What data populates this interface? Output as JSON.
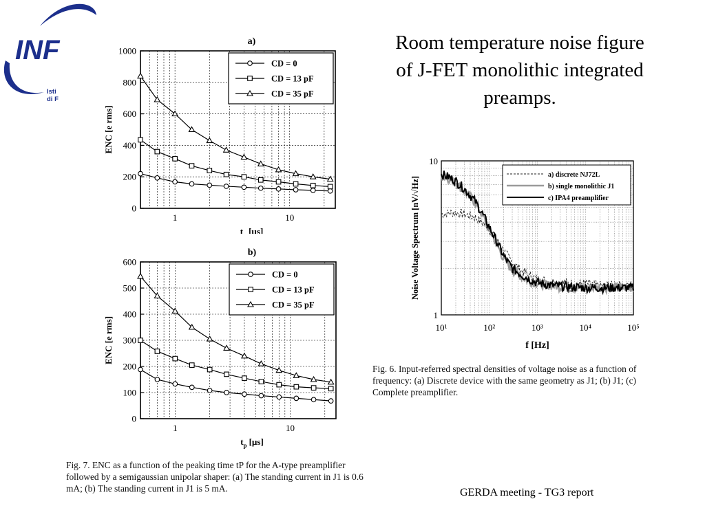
{
  "slide": {
    "title": "Room temperature noise figure of J-FET monolithic integrated preamps.",
    "footer": "GERDA meeting - TG3 report",
    "logo": {
      "text": "INF",
      "line1": "Isti",
      "line2": "di F",
      "color": "#1c2f8c"
    }
  },
  "captions": {
    "fig7": "Fig. 7. ENC as a function of the peaking time tP for the A-type preamplifier followed by a semigaussian unipolar shaper: (a) The standing current in J1 is 0.6 mA; (b) The standing current in J1 is 5 mA.",
    "fig6": "Fig. 6. Input-referred spectral densities of voltage noise as a function of frequency: (a) Discrete device with the same geometry as J1; (b) J1; (c) Complete preamplifier."
  },
  "chart_data": [
    {
      "panel": "a)",
      "type": "line",
      "xscale": "log",
      "xlim": [
        0.5,
        25
      ],
      "ylim": [
        0,
        1000
      ],
      "xticks": [
        1,
        10
      ],
      "yticks": [
        0,
        200,
        400,
        600,
        800,
        1000
      ],
      "xlabel": "tp [µs]",
      "ylabel": "ENC [e rms]",
      "legend_position": "top-right",
      "x": [
        0.5,
        0.7,
        1.0,
        1.4,
        2.0,
        2.8,
        4.0,
        5.6,
        8.0,
        11.3,
        16.0,
        22.6
      ],
      "series": [
        {
          "name": "CD = 0",
          "marker": "circle",
          "values": [
            220,
            193,
            168,
            155,
            147,
            140,
            134,
            128,
            123,
            118,
            114,
            110
          ]
        },
        {
          "name": "CD = 13 pF",
          "marker": "square",
          "values": [
            435,
            360,
            315,
            270,
            240,
            215,
            200,
            180,
            168,
            155,
            145,
            138
          ]
        },
        {
          "name": "CD = 35 pF",
          "marker": "triangle",
          "values": [
            840,
            690,
            600,
            500,
            430,
            370,
            325,
            282,
            245,
            220,
            200,
            185
          ]
        }
      ]
    },
    {
      "panel": "b)",
      "type": "line",
      "xscale": "log",
      "xlim": [
        0.5,
        25
      ],
      "ylim": [
        0,
        600
      ],
      "xticks": [
        1,
        10
      ],
      "yticks": [
        0,
        100,
        200,
        300,
        400,
        500,
        600
      ],
      "xlabel": "tp [µs]",
      "ylabel": "ENC [e rms]",
      "legend_position": "top-right",
      "x": [
        0.5,
        0.7,
        1.0,
        1.4,
        2.0,
        2.8,
        4.0,
        5.6,
        8.0,
        11.3,
        16.0,
        22.6
      ],
      "series": [
        {
          "name": "CD = 0",
          "marker": "circle",
          "values": [
            188,
            150,
            133,
            120,
            108,
            100,
            94,
            88,
            83,
            78,
            73,
            68
          ]
        },
        {
          "name": "CD = 13 pF",
          "marker": "square",
          "values": [
            300,
            258,
            230,
            205,
            188,
            170,
            155,
            142,
            130,
            122,
            118,
            115
          ]
        },
        {
          "name": "CD = 35 pF",
          "marker": "triangle",
          "values": [
            545,
            470,
            412,
            350,
            305,
            270,
            240,
            210,
            185,
            165,
            150,
            140
          ]
        }
      ]
    },
    {
      "panel": "fig6",
      "type": "line",
      "xscale": "log",
      "yscale": "log",
      "xlim": [
        10,
        100000
      ],
      "ylim": [
        1,
        10
      ],
      "xticks": [
        "10¹",
        "10²",
        "10³",
        "10⁴",
        "10⁵"
      ],
      "yticks": [
        "1",
        "10"
      ],
      "xlabel": "f [Hz]",
      "ylabel": "Noise Voltage Spectrum [nV/√Hz]",
      "legend_position": "top-right",
      "x": [
        10,
        15,
        20,
        30,
        50,
        70,
        100,
        150,
        200,
        300,
        500,
        700,
        1000,
        2000,
        5000,
        10000,
        20000,
        50000,
        100000
      ],
      "series": [
        {
          "name": "a) discrete NJ72L",
          "style": "dashed",
          "values": [
            4.5,
            4.6,
            4.6,
            4.5,
            4.3,
            4.0,
            3.6,
            3.0,
            2.6,
            2.2,
            1.9,
            1.8,
            1.7,
            1.65,
            1.6,
            1.6,
            1.55,
            1.55,
            1.5
          ]
        },
        {
          "name": "b) single monolithic J1",
          "style": "gray",
          "values": [
            8.0,
            7.6,
            7.2,
            6.4,
            5.4,
            4.5,
            3.6,
            2.8,
            2.3,
            1.95,
            1.75,
            1.65,
            1.6,
            1.55,
            1.5,
            1.5,
            1.5,
            1.5,
            1.5
          ]
        },
        {
          "name": "c) IPA4 preamplifier",
          "style": "solid",
          "values": [
            8.2,
            7.8,
            7.4,
            6.6,
            5.5,
            4.6,
            3.7,
            2.9,
            2.4,
            2.0,
            1.8,
            1.7,
            1.62,
            1.55,
            1.52,
            1.5,
            1.5,
            1.5,
            1.5
          ]
        }
      ]
    }
  ]
}
